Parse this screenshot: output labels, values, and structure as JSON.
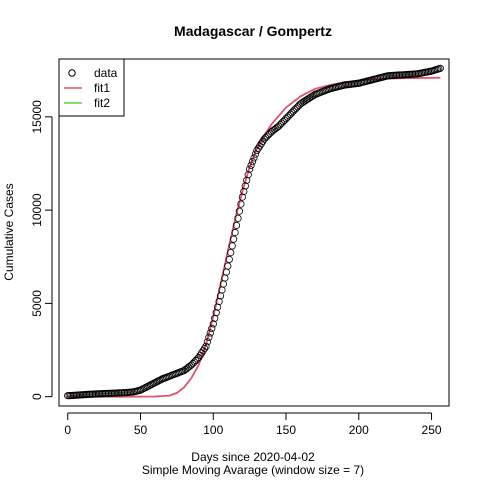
{
  "chart_data": {
    "type": "scatter",
    "title": "Madagascar / Gompertz",
    "xlabel": "Days since 2020-04-02",
    "xlabel2": "Simple Moving Avarage (window size = 7)",
    "ylabel": "Cumulative Cases",
    "xlim": [
      -6,
      262
    ],
    "ylim": [
      -500,
      18100
    ],
    "x_ticks": [
      0,
      50,
      100,
      150,
      200,
      250
    ],
    "y_ticks": [
      0,
      5000,
      10000,
      15000
    ],
    "legend_position": "top-left",
    "legend": [
      {
        "label": "data",
        "kind": "point",
        "color": "#000000"
      },
      {
        "label": "fit1",
        "kind": "line",
        "color": "#DF536B"
      },
      {
        "label": "fit2",
        "kind": "line",
        "color": "#61D04F"
      }
    ],
    "series": [
      {
        "name": "data",
        "kind": "points",
        "color": "#000000",
        "x": [
          0,
          10,
          20,
          30,
          40,
          45,
          50,
          55,
          60,
          65,
          70,
          75,
          80,
          85,
          90,
          95,
          100,
          105,
          110,
          115,
          120,
          125,
          130,
          135,
          140,
          145,
          150,
          160,
          170,
          180,
          190,
          200,
          210,
          220,
          230,
          240,
          250,
          256
        ],
        "y": [
          50,
          100,
          150,
          180,
          220,
          250,
          350,
          550,
          750,
          950,
          1100,
          1250,
          1400,
          1700,
          2100,
          2700,
          3900,
          5400,
          7000,
          8800,
          10700,
          12200,
          13200,
          13800,
          14200,
          14500,
          14900,
          15700,
          16200,
          16500,
          16700,
          16800,
          17000,
          17200,
          17250,
          17300,
          17450,
          17600
        ]
      },
      {
        "name": "fit1",
        "kind": "line",
        "color": "#DF536B",
        "x": [
          0,
          20,
          40,
          60,
          70,
          75,
          80,
          85,
          90,
          95,
          100,
          105,
          110,
          115,
          120,
          125,
          130,
          135,
          140,
          150,
          160,
          170,
          180,
          190,
          200,
          210,
          220,
          230,
          240,
          250,
          256
        ],
        "y": [
          0,
          0,
          0,
          10,
          60,
          200,
          500,
          1000,
          1700,
          2800,
          4300,
          6000,
          7800,
          9500,
          11000,
          12300,
          13300,
          14000,
          14600,
          15500,
          16100,
          16500,
          16700,
          16850,
          16950,
          17000,
          17050,
          17070,
          17080,
          17090,
          17100
        ]
      }
    ]
  }
}
